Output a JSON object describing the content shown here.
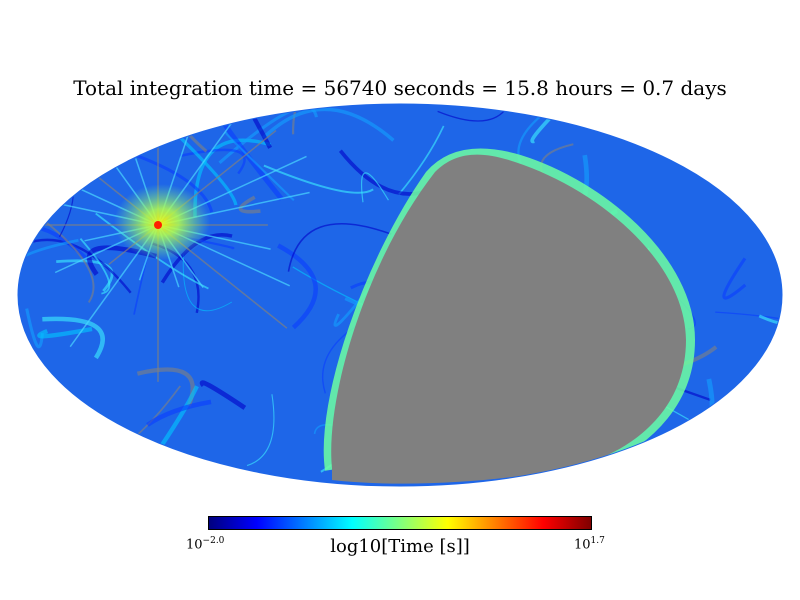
{
  "title": "Total integration time = 56740 seconds = 15.8 hours = 0.7 days",
  "colorbar": {
    "label": "log10[Time [s]]",
    "min_base": "10",
    "min_exp": "−2.0",
    "max_base": "10",
    "max_exp": "1.7",
    "min_value": -2.0,
    "max_value": 1.7,
    "colormap": "jet",
    "stops": [
      "#00007f",
      "#0000ff",
      "#007fff",
      "#00ffff",
      "#7fff7f",
      "#ffff00",
      "#ff7f00",
      "#ff0000",
      "#7f0000"
    ]
  },
  "map": {
    "projection": "mollweide",
    "unobserved_color": "#808080",
    "typical_coverage_color": "#1e6ee6",
    "hotspot_color": "#ffff00"
  }
}
